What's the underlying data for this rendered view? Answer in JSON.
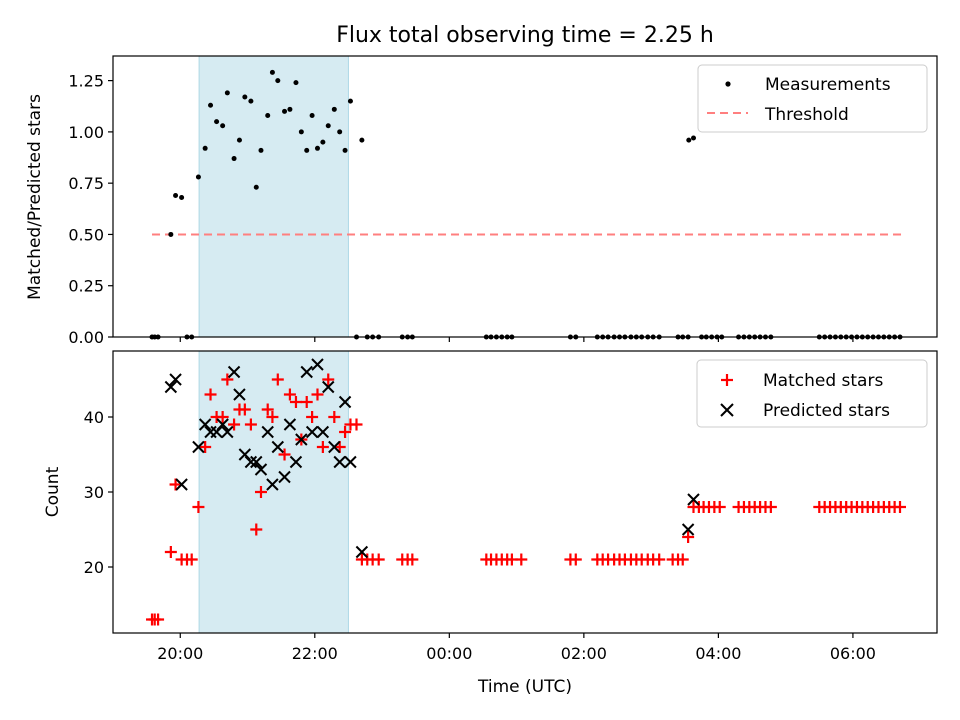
{
  "title": "Flux total observing time = 2.25 h",
  "chart_data": [
    {
      "type": "scatter",
      "ylabel": "Matched/Predicted stars",
      "xlabel": "",
      "xlim": [
        -1.0,
        11.25
      ],
      "ylim": [
        0.0,
        1.37
      ],
      "yticks": [
        0.0,
        0.25,
        0.5,
        0.75,
        1.0,
        1.25
      ],
      "ytick_labels": [
        "0.00",
        "0.25",
        "0.50",
        "0.75",
        "1.00",
        "1.25"
      ],
      "highlight_span": [
        0.28,
        2.5
      ],
      "legend": {
        "placement": "top-right",
        "entries": [
          "Measurements",
          "Threshold"
        ]
      },
      "threshold": {
        "name": "Threshold",
        "y": 0.5,
        "x": [
          -0.42,
          10.73
        ],
        "color": "#ff7f7f"
      },
      "series": [
        {
          "name": "Measurements",
          "color": "#000000",
          "points": [
            [
              -0.42,
              0
            ],
            [
              -0.38,
              0
            ],
            [
              -0.33,
              0
            ],
            [
              -0.14,
              0.5
            ],
            [
              -0.07,
              0.69
            ],
            [
              0.02,
              0.68
            ],
            [
              0.1,
              0
            ],
            [
              0.17,
              0
            ],
            [
              0.27,
              0.78
            ],
            [
              0.37,
              0.92
            ],
            [
              0.45,
              1.13
            ],
            [
              0.54,
              1.05
            ],
            [
              0.63,
              1.03
            ],
            [
              0.7,
              1.19
            ],
            [
              0.8,
              0.87
            ],
            [
              0.88,
              0.96
            ],
            [
              0.96,
              1.17
            ],
            [
              1.05,
              1.15
            ],
            [
              1.13,
              0.73
            ],
            [
              1.2,
              0.91
            ],
            [
              1.3,
              1.08
            ],
            [
              1.37,
              1.29
            ],
            [
              1.45,
              1.25
            ],
            [
              1.55,
              1.1
            ],
            [
              1.63,
              1.11
            ],
            [
              1.72,
              1.24
            ],
            [
              1.8,
              1.0
            ],
            [
              1.88,
              0.91
            ],
            [
              1.96,
              1.08
            ],
            [
              2.04,
              0.92
            ],
            [
              2.12,
              0.95
            ],
            [
              2.2,
              1.03
            ],
            [
              2.29,
              1.11
            ],
            [
              2.37,
              1.0
            ],
            [
              2.45,
              0.91
            ],
            [
              2.53,
              1.15
            ],
            [
              2.62,
              0
            ],
            [
              2.7,
              0.96
            ],
            [
              2.78,
              0
            ],
            [
              2.86,
              0
            ],
            [
              2.95,
              0
            ],
            [
              3.3,
              0
            ],
            [
              3.38,
              0
            ],
            [
              3.45,
              0
            ],
            [
              4.55,
              0
            ],
            [
              4.62,
              0
            ],
            [
              4.7,
              0
            ],
            [
              4.78,
              0
            ],
            [
              4.86,
              0
            ],
            [
              4.93,
              0
            ],
            [
              5.8,
              0
            ],
            [
              5.88,
              0
            ],
            [
              6.2,
              0
            ],
            [
              6.28,
              0
            ],
            [
              6.36,
              0
            ],
            [
              6.45,
              0
            ],
            [
              6.53,
              0
            ],
            [
              6.61,
              0
            ],
            [
              6.7,
              0
            ],
            [
              6.78,
              0
            ],
            [
              6.86,
              0
            ],
            [
              6.95,
              0
            ],
            [
              7.03,
              0
            ],
            [
              7.12,
              0
            ],
            [
              7.4,
              0
            ],
            [
              7.47,
              0
            ],
            [
              7.55,
              0
            ],
            [
              7.56,
              0.96
            ],
            [
              7.63,
              0.97
            ],
            [
              7.75,
              0
            ],
            [
              7.82,
              0
            ],
            [
              7.9,
              0
            ],
            [
              7.98,
              0
            ],
            [
              8.05,
              0
            ],
            [
              8.3,
              0
            ],
            [
              8.38,
              0
            ],
            [
              8.46,
              0
            ],
            [
              8.54,
              0
            ],
            [
              8.62,
              0
            ],
            [
              8.7,
              0
            ],
            [
              8.78,
              0
            ],
            [
              9.5,
              0
            ],
            [
              9.58,
              0
            ],
            [
              9.66,
              0
            ],
            [
              9.74,
              0
            ],
            [
              9.82,
              0
            ],
            [
              9.9,
              0
            ],
            [
              9.98,
              0
            ],
            [
              10.06,
              0
            ],
            [
              10.14,
              0
            ],
            [
              10.22,
              0
            ],
            [
              10.3,
              0
            ],
            [
              10.38,
              0
            ],
            [
              10.46,
              0
            ],
            [
              10.54,
              0
            ],
            [
              10.62,
              0
            ],
            [
              10.7,
              0
            ]
          ]
        }
      ]
    },
    {
      "type": "scatter",
      "ylabel": "Count",
      "xlabel": "Time (UTC)",
      "xlim": [
        -1.0,
        11.25
      ],
      "ylim": [
        11.2,
        48.8
      ],
      "yticks": [
        20,
        30,
        40
      ],
      "ytick_labels": [
        "20",
        "30",
        "40"
      ],
      "xticks": [
        0,
        2,
        4,
        6,
        8,
        10
      ],
      "xtick_labels": [
        "20:00",
        "22:00",
        "00:00",
        "02:00",
        "04:00",
        "06:00"
      ],
      "highlight_span": [
        0.28,
        2.5
      ],
      "legend": {
        "placement": "top-right",
        "entries": [
          "Matched stars",
          "Predicted stars"
        ]
      },
      "series": [
        {
          "name": "Matched stars",
          "color": "#ff0000",
          "marker": "plus",
          "points": [
            [
              -0.42,
              13
            ],
            [
              -0.38,
              13
            ],
            [
              -0.33,
              13
            ],
            [
              -0.14,
              22
            ],
            [
              -0.07,
              31
            ],
            [
              0.02,
              21
            ],
            [
              0.1,
              21
            ],
            [
              0.17,
              21
            ],
            [
              0.27,
              28
            ],
            [
              0.37,
              36
            ],
            [
              0.45,
              43
            ],
            [
              0.54,
              40
            ],
            [
              0.63,
              40
            ],
            [
              0.7,
              45
            ],
            [
              0.8,
              39
            ],
            [
              0.88,
              41
            ],
            [
              0.96,
              41
            ],
            [
              1.05,
              39
            ],
            [
              1.13,
              25
            ],
            [
              1.2,
              30
            ],
            [
              1.3,
              41
            ],
            [
              1.37,
              40
            ],
            [
              1.45,
              45
            ],
            [
              1.55,
              35
            ],
            [
              1.63,
              43
            ],
            [
              1.72,
              42
            ],
            [
              1.8,
              37
            ],
            [
              1.88,
              42
            ],
            [
              1.96,
              40
            ],
            [
              2.04,
              43
            ],
            [
              2.12,
              36
            ],
            [
              2.2,
              45
            ],
            [
              2.29,
              40
            ],
            [
              2.37,
              36
            ],
            [
              2.45,
              38
            ],
            [
              2.53,
              39
            ],
            [
              2.62,
              39
            ],
            [
              2.7,
              21
            ],
            [
              2.78,
              21
            ],
            [
              2.86,
              21
            ],
            [
              2.95,
              21
            ],
            [
              3.3,
              21
            ],
            [
              3.38,
              21
            ],
            [
              3.45,
              21
            ],
            [
              4.55,
              21
            ],
            [
              4.62,
              21
            ],
            [
              4.7,
              21
            ],
            [
              4.78,
              21
            ],
            [
              4.86,
              21
            ],
            [
              4.93,
              21
            ],
            [
              5.07,
              21
            ],
            [
              5.8,
              21
            ],
            [
              5.88,
              21
            ],
            [
              6.2,
              21
            ],
            [
              6.28,
              21
            ],
            [
              6.36,
              21
            ],
            [
              6.45,
              21
            ],
            [
              6.53,
              21
            ],
            [
              6.61,
              21
            ],
            [
              6.7,
              21
            ],
            [
              6.78,
              21
            ],
            [
              6.86,
              21
            ],
            [
              6.95,
              21
            ],
            [
              7.03,
              21
            ],
            [
              7.12,
              21
            ],
            [
              7.32,
              21
            ],
            [
              7.4,
              21
            ],
            [
              7.47,
              21
            ],
            [
              7.55,
              24
            ],
            [
              7.63,
              28
            ],
            [
              7.71,
              28
            ],
            [
              7.78,
              28
            ],
            [
              7.86,
              28
            ],
            [
              7.94,
              28
            ],
            [
              8.02,
              28
            ],
            [
              8.3,
              28
            ],
            [
              8.38,
              28
            ],
            [
              8.46,
              28
            ],
            [
              8.54,
              28
            ],
            [
              8.62,
              28
            ],
            [
              8.7,
              28
            ],
            [
              8.78,
              28
            ],
            [
              9.5,
              28
            ],
            [
              9.58,
              28
            ],
            [
              9.66,
              28
            ],
            [
              9.74,
              28
            ],
            [
              9.82,
              28
            ],
            [
              9.9,
              28
            ],
            [
              9.98,
              28
            ],
            [
              10.06,
              28
            ],
            [
              10.14,
              28
            ],
            [
              10.22,
              28
            ],
            [
              10.3,
              28
            ],
            [
              10.38,
              28
            ],
            [
              10.46,
              28
            ],
            [
              10.54,
              28
            ],
            [
              10.62,
              28
            ],
            [
              10.7,
              28
            ]
          ]
        },
        {
          "name": "Predicted stars",
          "color": "#000000",
          "marker": "x",
          "points": [
            [
              -0.14,
              44
            ],
            [
              -0.07,
              45
            ],
            [
              0.02,
              31
            ],
            [
              0.27,
              36
            ],
            [
              0.37,
              39
            ],
            [
              0.45,
              38
            ],
            [
              0.54,
              38
            ],
            [
              0.63,
              39
            ],
            [
              0.7,
              38
            ],
            [
              0.8,
              46
            ],
            [
              0.88,
              43
            ],
            [
              0.96,
              35
            ],
            [
              1.05,
              34
            ],
            [
              1.13,
              34
            ],
            [
              1.2,
              33
            ],
            [
              1.3,
              38
            ],
            [
              1.37,
              31
            ],
            [
              1.45,
              36
            ],
            [
              1.55,
              32
            ],
            [
              1.63,
              39
            ],
            [
              1.72,
              34
            ],
            [
              1.8,
              37
            ],
            [
              1.88,
              46
            ],
            [
              1.96,
              38
            ],
            [
              2.04,
              47
            ],
            [
              2.12,
              38
            ],
            [
              2.2,
              44
            ],
            [
              2.29,
              36
            ],
            [
              2.37,
              34
            ],
            [
              2.45,
              42
            ],
            [
              2.53,
              34
            ],
            [
              2.7,
              22
            ],
            [
              7.55,
              25
            ],
            [
              7.63,
              29
            ]
          ]
        }
      ]
    }
  ]
}
